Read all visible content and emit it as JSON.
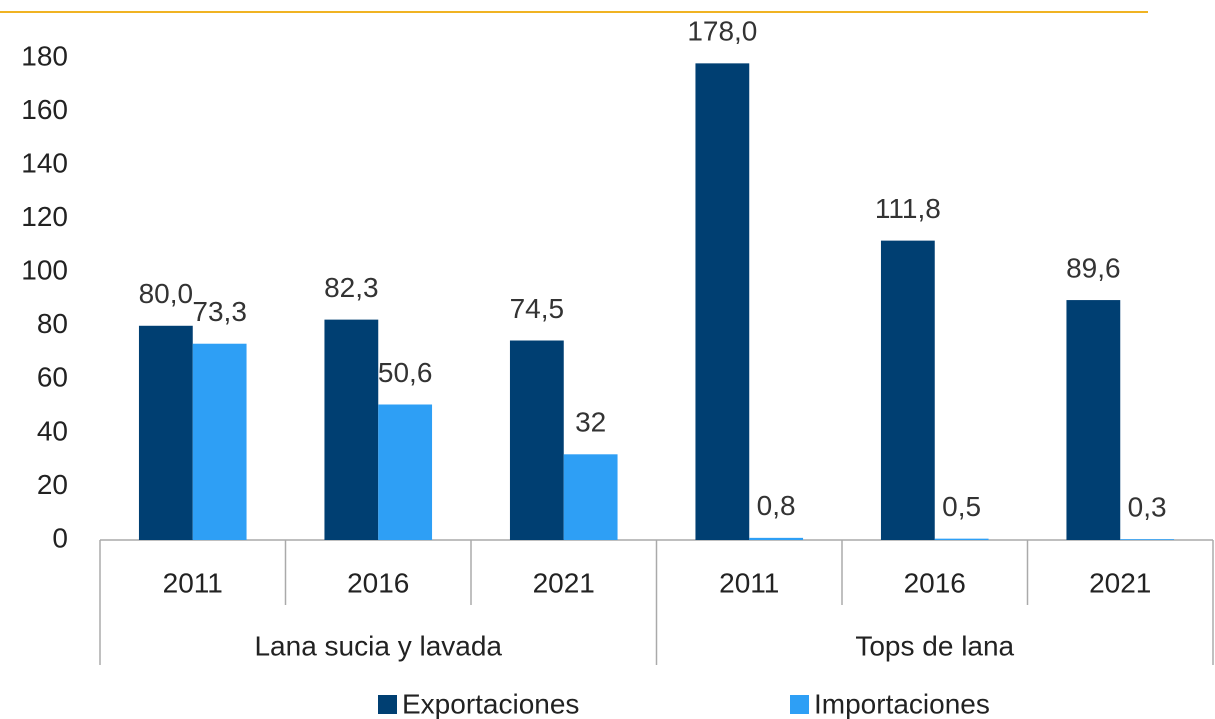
{
  "chart_data": {
    "type": "bar",
    "categories": [
      "2011",
      "2016",
      "2021",
      "2011",
      "2016",
      "2021"
    ],
    "groups": [
      "Lana sucia y lavada",
      "Tops de lana"
    ],
    "series": [
      {
        "name": "Exportaciones",
        "color": "#003f72",
        "values": [
          80.0,
          82.3,
          74.5,
          178.0,
          111.8,
          89.6
        ],
        "value_labels": [
          "80,0",
          "82,3",
          "74,5",
          "178,0",
          "111,8",
          "89,6"
        ]
      },
      {
        "name": "Importaciones",
        "color": "#2e9ff5",
        "values": [
          73.3,
          50.6,
          32,
          0.8,
          0.5,
          0.3
        ],
        "value_labels": [
          "73,3",
          "50,6",
          "32",
          "0,8",
          "0,5",
          "0,3"
        ]
      }
    ],
    "ylim": [
      0,
      180
    ],
    "yticks": [
      0,
      20,
      40,
      60,
      80,
      100,
      120,
      140,
      160,
      180
    ],
    "grid": false,
    "legend": "bottom"
  }
}
